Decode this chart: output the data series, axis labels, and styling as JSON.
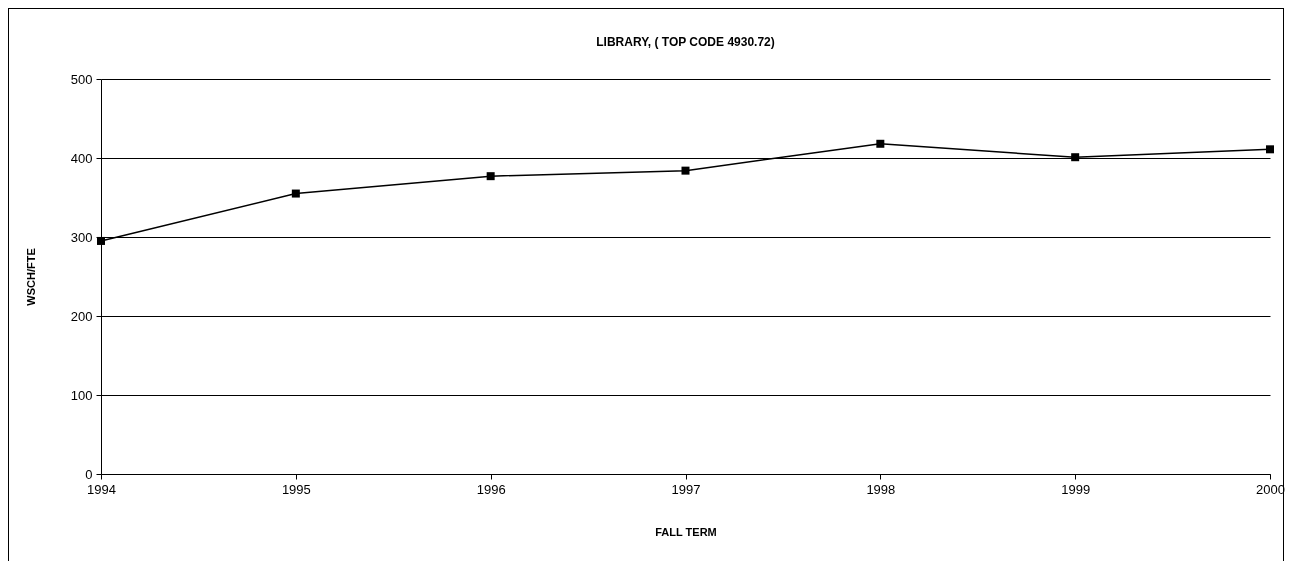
{
  "chart_data": {
    "type": "line",
    "title": "LIBRARY, ( TOP CODE 4930.72)",
    "xlabel": "FALL TERM",
    "ylabel": "WSCH/FTE",
    "x": [
      1994,
      1995,
      1996,
      1997,
      1998,
      1999,
      2000
    ],
    "series": [
      {
        "color": "#000000",
        "values": [
          295,
          355,
          377,
          384,
          418,
          401,
          411
        ]
      }
    ],
    "xlim": [
      1994,
      2000
    ],
    "xticks": [
      1994,
      1995,
      1996,
      1997,
      1998,
      1999,
      2000
    ],
    "ylim": [
      0,
      500
    ],
    "yticks": [
      0,
      100,
      200,
      300,
      400,
      500
    ],
    "grid": "y",
    "marker": "square",
    "line_style": "solid",
    "legend": false
  }
}
